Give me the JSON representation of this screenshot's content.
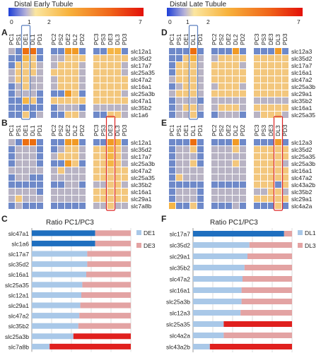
{
  "left": {
    "title": "Distal Early Tubule",
    "scale": {
      "min": "0",
      "ticks": [
        "1",
        "2"
      ],
      "max": "7"
    },
    "panel_A": {
      "label": "A",
      "cols": [
        [
          "PC1",
          "PS1",
          "DE1",
          "DL1",
          "PD1"
        ],
        [
          "PC2",
          "PS2",
          "DE2",
          "DL2",
          "PD2"
        ],
        [
          "PC3",
          "PS3",
          "DE3",
          "DL3",
          "PD3"
        ]
      ],
      "rows": [
        "slc12a1",
        "slc35d2",
        "slc17a7",
        "slc25a35",
        "slc47a2",
        "slc16a1",
        "slc25a3b",
        "slc47a1",
        "slc35b2",
        "slc1a6"
      ],
      "highlight_block": 0,
      "highlight_col": 2,
      "highlight_color": "#5b7fbf",
      "values": [
        [
          [
            2,
            1,
            6,
            6,
            1
          ],
          [
            1,
            1,
            5,
            5,
            1
          ],
          [
            1,
            1,
            4,
            4,
            1
          ]
        ],
        [
          [
            1,
            1,
            4,
            3,
            1
          ],
          [
            2,
            2,
            3,
            3,
            3
          ],
          [
            3,
            3,
            3,
            3,
            3
          ]
        ],
        [
          [
            1,
            3,
            3,
            3,
            2
          ],
          [
            2,
            3,
            3,
            3,
            2
          ],
          [
            3,
            3,
            3,
            3,
            2
          ]
        ],
        [
          [
            2,
            3,
            3,
            3,
            2
          ],
          [
            3,
            3,
            3,
            3,
            2
          ],
          [
            3,
            3,
            3,
            3,
            2
          ]
        ],
        [
          [
            2,
            3,
            3,
            2,
            2
          ],
          [
            2,
            3,
            3,
            3,
            2
          ],
          [
            3,
            3,
            3,
            3,
            3
          ]
        ],
        [
          [
            1,
            2,
            3,
            2,
            2
          ],
          [
            2,
            3,
            3,
            3,
            2
          ],
          [
            3,
            3,
            3,
            3,
            3
          ]
        ],
        [
          [
            1,
            2,
            2,
            2,
            1
          ],
          [
            1,
            1,
            5,
            3,
            1
          ],
          [
            3,
            3,
            3,
            3,
            2
          ]
        ],
        [
          [
            1,
            1,
            4,
            3,
            1
          ],
          [
            3,
            3,
            3,
            3,
            3
          ],
          [
            3,
            3,
            3,
            3,
            3
          ]
        ],
        [
          [
            1,
            1,
            1,
            1,
            1
          ],
          [
            1,
            2,
            2,
            2,
            1
          ],
          [
            2,
            2,
            2,
            2,
            2
          ]
        ],
        [
          [
            1,
            1,
            3,
            1,
            2
          ],
          [
            1,
            1,
            3,
            3,
            2
          ],
          [
            1,
            1,
            3,
            3,
            2
          ]
        ]
      ]
    },
    "panel_B": {
      "label": "B",
      "cols": [
        [
          "PC1",
          "PS1",
          "DE1",
          "DL1",
          "PD1"
        ],
        [
          "PC2",
          "PS2",
          "DE2",
          "DL2",
          "PD2"
        ],
        [
          "PC3",
          "PS3",
          "DE3",
          "DL3",
          "PD3"
        ]
      ],
      "rows": [
        "slc12a1",
        "slc35d2",
        "slc17a7",
        "slc25a3b",
        "slc47a2",
        "slc25a35",
        "slc35b2",
        "slc16a1",
        "slc29a1",
        "slc7a8b"
      ],
      "highlight_block": 2,
      "highlight_col": 2,
      "highlight_color": "#dd2222",
      "values": [
        [
          [
            2,
            1,
            6,
            6,
            1
          ],
          [
            1,
            1,
            5,
            5,
            1
          ],
          [
            1,
            1,
            5,
            4,
            1
          ]
        ],
        [
          [
            1,
            2,
            2,
            2,
            1
          ],
          [
            1,
            2,
            3,
            3,
            2
          ],
          [
            3,
            3,
            4,
            3,
            2
          ]
        ],
        [
          [
            1,
            2,
            2,
            2,
            1
          ],
          [
            2,
            3,
            3,
            3,
            2
          ],
          [
            3,
            3,
            4,
            3,
            2
          ]
        ],
        [
          [
            1,
            2,
            2,
            2,
            1
          ],
          [
            1,
            1,
            5,
            3,
            1
          ],
          [
            3,
            3,
            4,
            3,
            2
          ]
        ],
        [
          [
            2,
            2,
            2,
            2,
            2
          ],
          [
            2,
            3,
            2,
            2,
            2
          ],
          [
            3,
            3,
            3,
            3,
            3
          ]
        ],
        [
          [
            1,
            2,
            2,
            1,
            1
          ],
          [
            2,
            2,
            2,
            2,
            2
          ],
          [
            3,
            3,
            3,
            3,
            3
          ]
        ],
        [
          [
            1,
            1,
            1,
            1,
            1
          ],
          [
            1,
            1,
            2,
            2,
            1
          ],
          [
            2,
            2,
            3,
            3,
            2
          ]
        ],
        [
          [
            2,
            2,
            2,
            2,
            1
          ],
          [
            2,
            2,
            2,
            2,
            2
          ],
          [
            3,
            3,
            3,
            3,
            3
          ]
        ],
        [
          [
            2,
            3,
            2,
            2,
            2
          ],
          [
            2,
            2,
            2,
            2,
            2
          ],
          [
            3,
            3,
            3,
            3,
            3
          ]
        ],
        [
          [
            1,
            2,
            1,
            1,
            1
          ],
          [
            1,
            1,
            1,
            1,
            1
          ],
          [
            2,
            2,
            3,
            2,
            2
          ]
        ]
      ]
    },
    "panel_C": {
      "label": "C",
      "chart_data": {
        "type": "bar",
        "title": "Ratio PC1/PC3",
        "categories": [
          "slc47a1",
          "slc1a6",
          "slc17a7",
          "slc35d2",
          "slc16a1",
          "slc25a35",
          "slc12a1",
          "slc29a1",
          "slc47a2",
          "slc35b2",
          "slc25a3b",
          "slc7a8b"
        ],
        "series": [
          {
            "name": "DE1",
            "values": [
              64,
              64,
              56,
              56,
              55,
              51,
              50,
              49,
              48,
              47,
              42,
              18
            ],
            "colors": [
              "#1f6fbf",
              "#1f6fbf",
              "#a9c8e8",
              "#a9c8e8",
              "#a9c8e8",
              "#a9c8e8",
              "#a9c8e8",
              "#a9c8e8",
              "#a9c8e8",
              "#a9c8e8",
              "#a9c8e8",
              "#a9c8e8"
            ]
          },
          {
            "name": "DE3",
            "values": [
              36,
              36,
              44,
              44,
              45,
              49,
              50,
              51,
              52,
              53,
              58,
              82
            ],
            "colors": [
              "#e3a3a3",
              "#e3a3a3",
              "#e3a3a3",
              "#e3a3a3",
              "#e3a3a3",
              "#e3a3a3",
              "#e3a3a3",
              "#e3a3a3",
              "#e3a3a3",
              "#e3a3a3",
              "#e0201e",
              "#e0201e"
            ]
          }
        ],
        "xticks": [
          "0%",
          "20%",
          "40%",
          "60%",
          "80%",
          "100%"
        ],
        "xlim": [
          0,
          100
        ],
        "legend": "right",
        "legend_colors": [
          "#a9c8e8",
          "#e3a3a3"
        ]
      }
    }
  },
  "right": {
    "title": "Distal Late Tubule",
    "scale": {
      "min": "0",
      "ticks": [
        "1",
        "2"
      ],
      "max": "7"
    },
    "panel_D": {
      "label": "D",
      "cols": [
        [
          "PC1",
          "PS1",
          "DE1",
          "DL1",
          "PD1"
        ],
        [
          "PC2",
          "PS2",
          "DE2",
          "DL2",
          "PD2"
        ],
        [
          "PC3",
          "PS3",
          "DE3",
          "DL3",
          "PD3"
        ]
      ],
      "rows": [
        "slc12a3",
        "slc35d2",
        "slc17a7",
        "slc16a1",
        "slc47a2",
        "slc25a3b",
        "slc29a1",
        "slc35b2",
        "slc16a1",
        "slc25a35"
      ],
      "highlight_block": 0,
      "highlight_col": 3,
      "highlight_color": "#5b7fbf",
      "values": [
        [
          [
            1,
            1,
            1,
            6,
            1
          ],
          [
            1,
            1,
            1,
            5,
            1
          ],
          [
            1,
            1,
            1,
            5,
            1
          ]
        ],
        [
          [
            1,
            1,
            3,
            4,
            2
          ],
          [
            2,
            3,
            3,
            3,
            3
          ],
          [
            3,
            3,
            3,
            3,
            3
          ]
        ],
        [
          [
            1,
            3,
            3,
            3,
            2
          ],
          [
            3,
            3,
            3,
            3,
            2
          ],
          [
            3,
            3,
            3,
            3,
            3
          ]
        ],
        [
          [
            1,
            3,
            3,
            3,
            2
          ],
          [
            3,
            3,
            3,
            3,
            3
          ],
          [
            3,
            3,
            3,
            3,
            3
          ]
        ],
        [
          [
            2,
            3,
            3,
            3,
            2
          ],
          [
            3,
            3,
            3,
            3,
            3
          ],
          [
            3,
            3,
            3,
            3,
            3
          ]
        ],
        [
          [
            1,
            2,
            3,
            3,
            2
          ],
          [
            2,
            3,
            3,
            3,
            2
          ],
          [
            3,
            3,
            3,
            3,
            3
          ]
        ],
        [
          [
            2,
            3,
            3,
            3,
            2
          ],
          [
            3,
            3,
            3,
            3,
            3
          ],
          [
            3,
            3,
            3,
            3,
            3
          ]
        ],
        [
          [
            1,
            2,
            2,
            2,
            1
          ],
          [
            2,
            2,
            2,
            2,
            2
          ],
          [
            2,
            2,
            2,
            2,
            2
          ]
        ],
        [
          [
            1,
            2,
            3,
            3,
            2
          ],
          [
            2,
            3,
            3,
            3,
            2
          ],
          [
            3,
            3,
            3,
            3,
            3
          ]
        ],
        [
          [
            1,
            2,
            2,
            3,
            1
          ],
          [
            1,
            2,
            2,
            2,
            1
          ],
          [
            2,
            3,
            3,
            3,
            2
          ]
        ]
      ]
    },
    "panel_E": {
      "label": "E",
      "cols": [
        [
          "PC1",
          "PS1",
          "DE1",
          "DL1",
          "PD1"
        ],
        [
          "PC2",
          "PS2",
          "DE2",
          "DL2",
          "PD2"
        ],
        [
          "PC3",
          "PS3",
          "DE3",
          "DL3",
          "PD3"
        ]
      ],
      "rows": [
        "slc12a3",
        "slc35d2",
        "slc25a35",
        "slc25a3b",
        "slc16a1",
        "slc47a2",
        "slc43a2b",
        "slc35b2",
        "slc29a1",
        "slc4a2a"
      ],
      "highlight_block": 2,
      "highlight_col": 3,
      "highlight_color": "#dd2222",
      "values": [
        [
          [
            1,
            1,
            1,
            6,
            1
          ],
          [
            1,
            1,
            1,
            5,
            1
          ],
          [
            1,
            1,
            1,
            5,
            1
          ]
        ],
        [
          [
            1,
            2,
            2,
            3,
            1
          ],
          [
            2,
            2,
            2,
            3,
            2
          ],
          [
            3,
            3,
            3,
            3,
            3
          ]
        ],
        [
          [
            1,
            2,
            2,
            2,
            1
          ],
          [
            2,
            2,
            2,
            2,
            2
          ],
          [
            3,
            3,
            3,
            3,
            3
          ]
        ],
        [
          [
            1,
            2,
            2,
            3,
            1
          ],
          [
            2,
            2,
            2,
            3,
            2
          ],
          [
            3,
            3,
            3,
            3,
            2
          ]
        ],
        [
          [
            1,
            2,
            2,
            2,
            2
          ],
          [
            2,
            2,
            2,
            2,
            2
          ],
          [
            3,
            3,
            3,
            3,
            3
          ]
        ],
        [
          [
            1,
            3,
            2,
            2,
            2
          ],
          [
            2,
            2,
            2,
            2,
            2
          ],
          [
            3,
            3,
            3,
            3,
            3
          ]
        ],
        [
          [
            1,
            1,
            1,
            1,
            1
          ],
          [
            1,
            1,
            1,
            1,
            1
          ],
          [
            3,
            3,
            3,
            1,
            3
          ]
        ],
        [
          [
            1,
            2,
            2,
            2,
            1
          ],
          [
            2,
            2,
            2,
            2,
            2
          ],
          [
            2,
            2,
            3,
            3,
            2
          ]
        ],
        [
          [
            1,
            2,
            2,
            2,
            1
          ],
          [
            2,
            2,
            2,
            2,
            2
          ],
          [
            3,
            3,
            3,
            3,
            3
          ]
        ],
        [
          [
            4,
            1,
            1,
            3,
            1
          ],
          [
            1,
            1,
            1,
            2,
            1
          ],
          [
            1,
            1,
            1,
            3,
            1
          ]
        ]
      ]
    },
    "panel_F": {
      "label": "F",
      "chart_data": {
        "type": "bar",
        "title": "Ratio PC1/PC3",
        "categories": [
          "slc17a7",
          "slc35d2",
          "slc29a1",
          "slc35b2",
          "slc47a2",
          "slc16a1",
          "slc25a3b",
          "slc12a3",
          "slc25a35",
          "slc4a2a",
          "slc43a2b"
        ],
        "series": [
          {
            "name": "DL1",
            "values": [
              92,
              57,
              55,
              52,
              50,
              49,
              49,
              48,
              31,
              31,
              17
            ],
            "colors": [
              "#1f6fbf",
              "#a9c8e8",
              "#a9c8e8",
              "#a9c8e8",
              "#a9c8e8",
              "#a9c8e8",
              "#a9c8e8",
              "#a9c8e8",
              "#a9c8e8",
              "#a9c8e8",
              "#a9c8e8"
            ]
          },
          {
            "name": "DL3",
            "values": [
              8,
              43,
              45,
              48,
              50,
              51,
              51,
              52,
              69,
              69,
              83
            ],
            "colors": [
              "#e3a3a3",
              "#e3a3a3",
              "#e3a3a3",
              "#e3a3a3",
              "#e3a3a3",
              "#e3a3a3",
              "#e3a3a3",
              "#e3a3a3",
              "#e0201e",
              "#e3a3a3",
              "#e0201e"
            ]
          }
        ],
        "xticks": [
          "0%",
          "20%",
          "40%",
          "60%",
          "80%",
          "100%"
        ],
        "xlim": [
          0,
          100
        ],
        "legend": "right",
        "legend_colors": [
          "#a9c8e8",
          "#e3a3a3"
        ]
      }
    },
    "color_levels": [
      "#1d3fd8",
      "#6e89c9",
      "#b8b3c4",
      "#f3c77d",
      "#f5b545",
      "#f19a25",
      "#ec6e10",
      "#e31b0a"
    ]
  }
}
